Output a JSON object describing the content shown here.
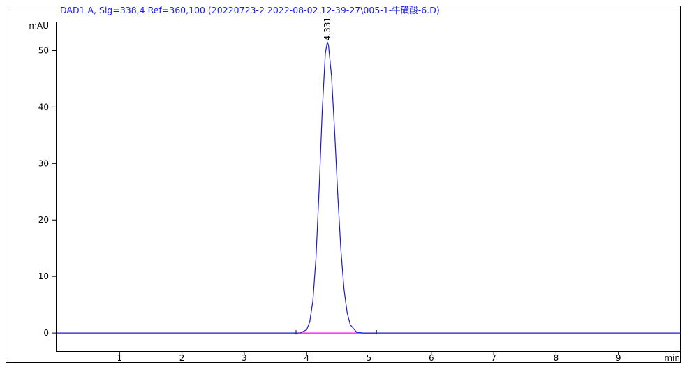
{
  "chart_data": {
    "type": "line",
    "title": "DAD1 A, Sig=338,4 Ref=360,100 (20220723-2 2022-08-02 12-39-27\\005-1-牛磺酸-6.D)",
    "y_label": "mAU",
    "x_label": "min",
    "xlim": [
      0,
      10
    ],
    "ylim": [
      -3.2,
      55
    ],
    "xticks": [
      1,
      2,
      3,
      4,
      5,
      6,
      7,
      8,
      9
    ],
    "yticks": [
      0,
      10,
      20,
      30,
      40,
      50
    ],
    "series": [
      {
        "name": "DAD1 A",
        "color": "#1a1acc",
        "x": [
          0,
          3.8,
          3.9,
          4.0,
          4.05,
          4.1,
          4.15,
          4.2,
          4.25,
          4.3,
          4.331,
          4.35,
          4.4,
          4.45,
          4.5,
          4.55,
          4.6,
          4.65,
          4.7,
          4.8,
          4.9,
          5.0,
          10
        ],
        "values": [
          0,
          0,
          0.02,
          0.56,
          1.97,
          5.7,
          13.3,
          25.3,
          39.3,
          49.5,
          51.5,
          51.0,
          45.4,
          35.5,
          24.3,
          14.6,
          7.7,
          3.57,
          1.45,
          0.16,
          0,
          0,
          0
        ]
      }
    ],
    "integration_baseline": {
      "color": "#ff00ff",
      "x": [
        3.83,
        5.12
      ],
      "values": [
        0,
        0
      ]
    },
    "annotations": [
      {
        "x": 4.331,
        "y": 51.5,
        "text": "4.331"
      }
    ]
  }
}
